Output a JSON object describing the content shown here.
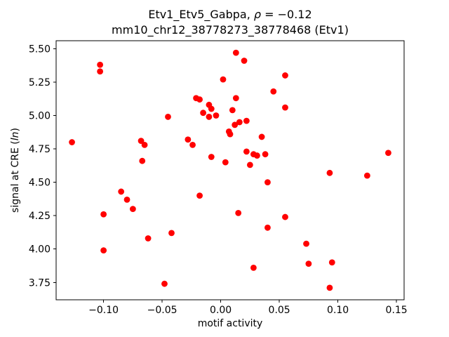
{
  "figure": {
    "background": "#ffffff"
  },
  "chart_data": {
    "type": "scatter",
    "title_prefix": "Etv1_Etv5_Gabpa, ",
    "title_rho": "ρ",
    "title_suffix": " = −0.12",
    "subtitle": "mm10_chr12_38778273_38778468 (Etv1)",
    "xlabel": "motif activity",
    "ylabel_prefix": "signal at CRE (",
    "ylabel_italic": "ln",
    "ylabel_suffix": ")",
    "marker_color": "#ff0000",
    "axis_color": "#000000",
    "grid": false,
    "legend": "none",
    "xlim": [
      -0.1405,
      0.1565
    ],
    "ylim": [
      3.62,
      5.56
    ],
    "xticks": [
      -0.1,
      -0.05,
      0.0,
      0.05,
      0.1,
      0.15
    ],
    "xtick_labels": [
      "−0.10",
      "−0.05",
      "0.00",
      "0.05",
      "0.10",
      "0.15"
    ],
    "yticks": [
      3.75,
      4.0,
      4.25,
      4.5,
      4.75,
      5.0,
      5.25,
      5.5
    ],
    "ytick_labels": [
      "3.75",
      "4.00",
      "4.25",
      "4.50",
      "4.75",
      "5.00",
      "5.25",
      "5.50"
    ],
    "points": [
      [
        -0.127,
        4.8
      ],
      [
        -0.103,
        5.38
      ],
      [
        -0.103,
        5.33
      ],
      [
        -0.1,
        4.26
      ],
      [
        -0.1,
        3.99
      ],
      [
        -0.085,
        4.43
      ],
      [
        -0.08,
        4.37
      ],
      [
        -0.075,
        4.3
      ],
      [
        -0.068,
        4.81
      ],
      [
        -0.065,
        4.78
      ],
      [
        -0.067,
        4.66
      ],
      [
        -0.062,
        4.08
      ],
      [
        -0.048,
        3.74
      ],
      [
        -0.045,
        4.99
      ],
      [
        -0.042,
        4.12
      ],
      [
        -0.028,
        4.82
      ],
      [
        -0.024,
        4.78
      ],
      [
        -0.021,
        5.13
      ],
      [
        -0.018,
        5.12
      ],
      [
        -0.018,
        4.4
      ],
      [
        -0.015,
        5.02
      ],
      [
        -0.01,
        5.08
      ],
      [
        -0.008,
        5.05
      ],
      [
        -0.01,
        4.99
      ],
      [
        -0.004,
        5.0
      ],
      [
        -0.008,
        4.69
      ],
      [
        0.002,
        5.27
      ],
      [
        0.004,
        4.65
      ],
      [
        0.007,
        4.88
      ],
      [
        0.008,
        4.86
      ],
      [
        0.01,
        5.04
      ],
      [
        0.013,
        5.47
      ],
      [
        0.013,
        5.13
      ],
      [
        0.012,
        4.93
      ],
      [
        0.016,
        4.95
      ],
      [
        0.015,
        4.27
      ],
      [
        0.02,
        5.41
      ],
      [
        0.022,
        4.96
      ],
      [
        0.022,
        4.73
      ],
      [
        0.025,
        4.63
      ],
      [
        0.028,
        4.71
      ],
      [
        0.031,
        4.7
      ],
      [
        0.028,
        3.86
      ],
      [
        0.035,
        4.84
      ],
      [
        0.038,
        4.71
      ],
      [
        0.04,
        4.5
      ],
      [
        0.04,
        4.16
      ],
      [
        0.045,
        5.18
      ],
      [
        0.055,
        5.3
      ],
      [
        0.055,
        5.06
      ],
      [
        0.055,
        4.24
      ],
      [
        0.073,
        4.04
      ],
      [
        0.075,
        3.89
      ],
      [
        0.093,
        4.57
      ],
      [
        0.095,
        3.9
      ],
      [
        0.093,
        3.71
      ],
      [
        0.125,
        4.55
      ],
      [
        0.143,
        4.72
      ]
    ]
  }
}
